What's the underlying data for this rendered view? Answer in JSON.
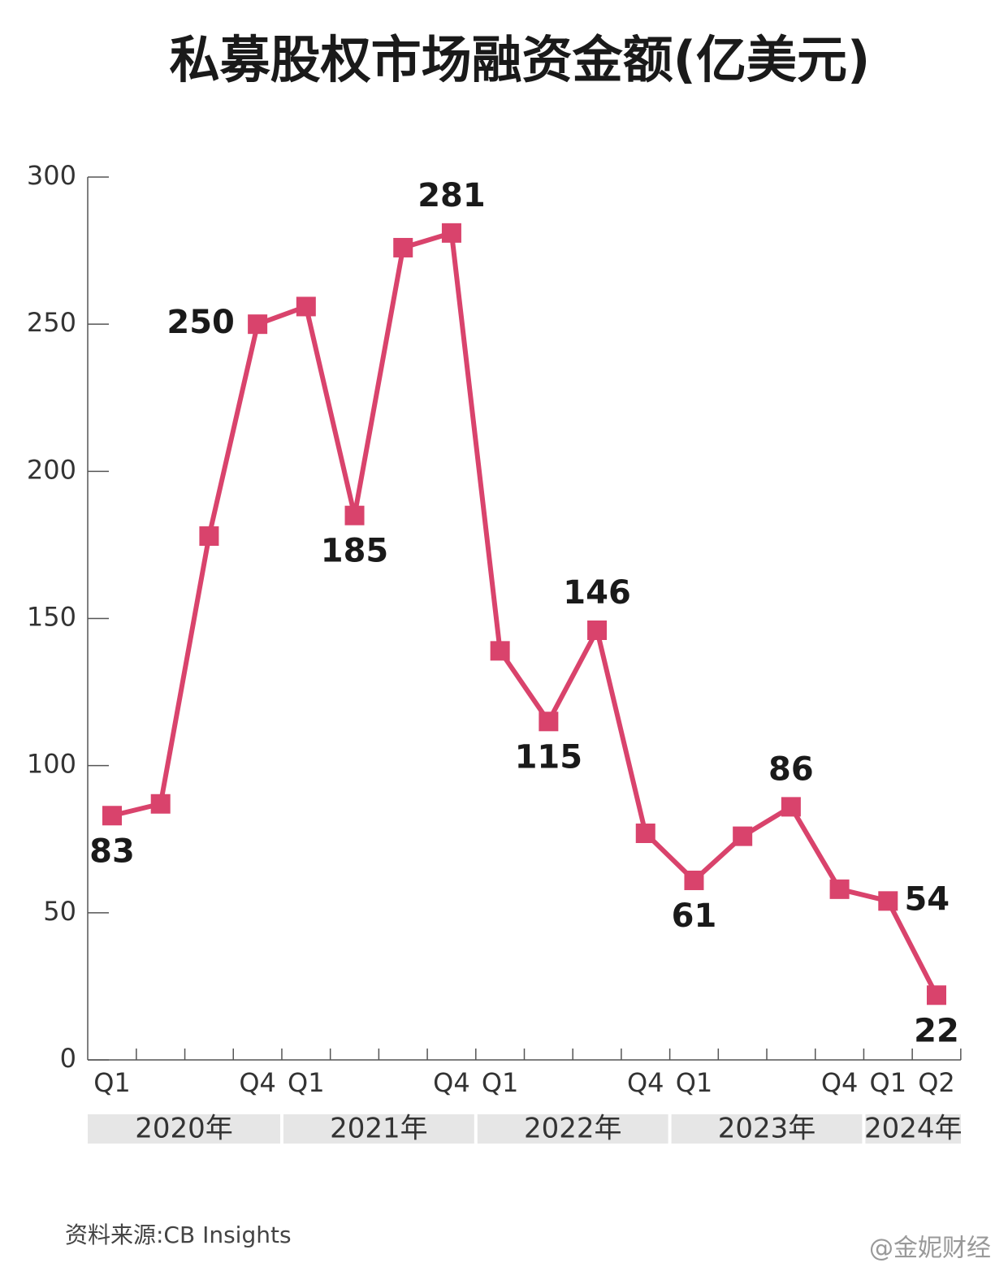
{
  "chart_data": {
    "type": "line",
    "title": "私募股权市场融资金额(亿美元)",
    "categories": [
      "Q1",
      null,
      null,
      "Q4",
      "Q1",
      null,
      null,
      "Q4",
      "Q1",
      null,
      null,
      "Q4",
      "Q1",
      null,
      null,
      "Q4",
      "Q1",
      "Q2"
    ],
    "years": [
      "2020年",
      "2021年",
      "2022年",
      "2023年",
      "2024年"
    ],
    "values": [
      83,
      87,
      178,
      250,
      256,
      185,
      276,
      281,
      139,
      115,
      146,
      77,
      61,
      76,
      86,
      58,
      54,
      22
    ],
    "value_labels": [
      "83",
      null,
      null,
      "250",
      null,
      "185",
      null,
      "281",
      null,
      "115",
      "146",
      null,
      "61",
      null,
      "86",
      null,
      "54",
      "22"
    ],
    "color": "#d9436c",
    "ylim": [
      0,
      300
    ],
    "yticks": [
      0,
      50,
      100,
      150,
      200,
      250,
      300
    ],
    "source": "资料来源:CB Insights",
    "watermark": "@金妮财经"
  }
}
